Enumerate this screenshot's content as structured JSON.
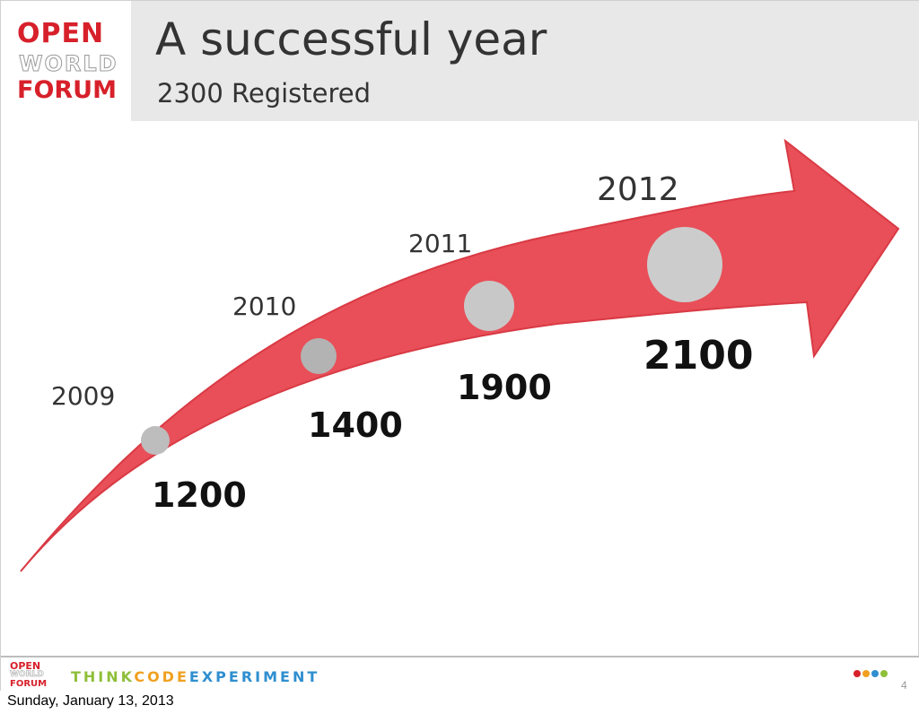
{
  "header": {
    "logo": {
      "line1": "OPEN",
      "line2": "WORLD",
      "line3": "FORUM"
    },
    "title": "A successful year",
    "subtitle": "2300 Registered"
  },
  "timeline": {
    "arrow_color": "#e84f58",
    "arrow_stroke": "#d93a44",
    "milestones": [
      {
        "year": "2009",
        "value": "1200"
      },
      {
        "year": "2010",
        "value": "1400"
      },
      {
        "year": "2011",
        "value": "1900"
      },
      {
        "year": "2012",
        "value": "2100"
      }
    ]
  },
  "footer": {
    "logo": {
      "line1": "OPEN",
      "line2": "WORLD",
      "line3": "FORUM"
    },
    "partner": {
      "part1": "THINK",
      "part2": "CODE",
      "part3": "EXPERIMENT"
    },
    "dot_colors": [
      "#d7202a",
      "#f0a020",
      "#2f8fd0",
      "#8fbf3a"
    ],
    "slide_number": "4"
  },
  "date_caption": "Sunday, January 13, 2013"
}
